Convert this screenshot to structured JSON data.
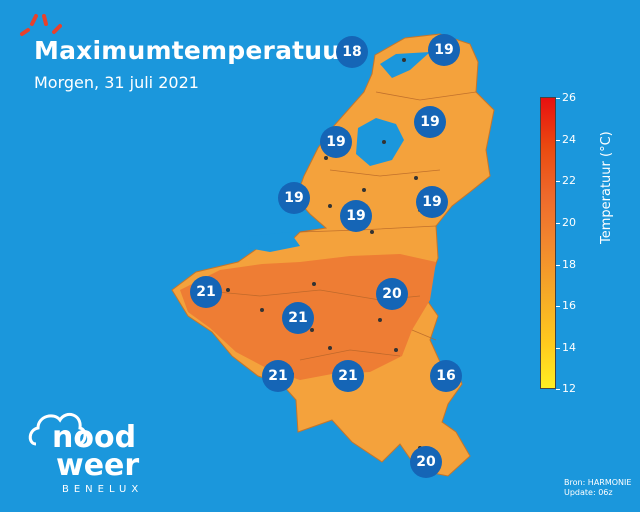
{
  "header": {
    "title": "Maximumtemperatuur",
    "subtitle": "Morgen, 31 juli 2021"
  },
  "badges": [
    "18",
    "19",
    "19",
    "19",
    "19",
    "19",
    "19",
    "21",
    "20",
    "21",
    "21",
    "21",
    "16",
    "20"
  ],
  "legend": {
    "title": "Temperatuur (°C)",
    "ticks": [
      "26",
      "24",
      "22",
      "20",
      "18",
      "16",
      "14",
      "12"
    ],
    "range": [
      12,
      26
    ],
    "colors": [
      "#ffee22",
      "#ffc81e",
      "#f5a828",
      "#f2872e",
      "#ee6a2c",
      "#ea4a10",
      "#e81010"
    ]
  },
  "logo": {
    "line1": "nood",
    "line2": "weer",
    "line3": "BENELUX"
  },
  "footer": {
    "source": "Bron: HARMONIE",
    "update": "Update: 06z"
  },
  "colors": {
    "background": "#1b97dc",
    "land": "#f4a23c",
    "warm_land": "#ee7d34",
    "badge": "#1565b6"
  }
}
